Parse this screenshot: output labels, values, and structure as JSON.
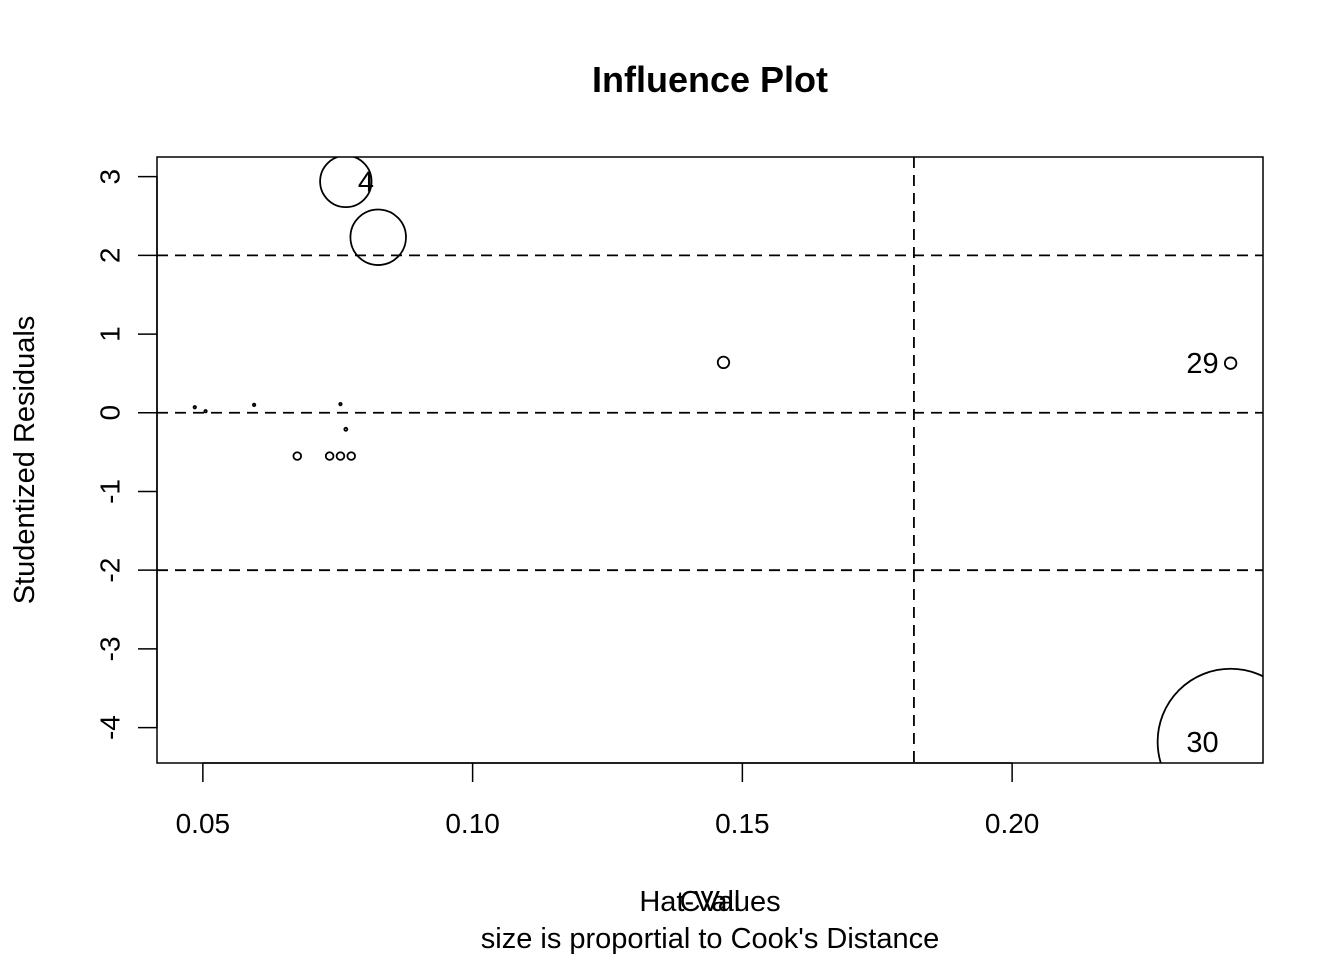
{
  "chart_data": {
    "type": "scatter",
    "title": "Influence Plot",
    "xlabel": "Hat-Values",
    "xlabel_overlay": "CVal",
    "subtitle": "size is proportial to Cook's Distance",
    "ylabel": "Studentized Residuals",
    "xlim": [
      0.0415,
      0.2465
    ],
    "ylim": [
      -4.45,
      3.25
    ],
    "x_ticks": [
      0.05,
      0.1,
      0.15,
      0.2
    ],
    "x_tick_labels": [
      "0.05",
      "0.10",
      "0.15",
      "0.20"
    ],
    "y_ticks": [
      -4,
      -3,
      -2,
      -1,
      0,
      1,
      2,
      3
    ],
    "y_tick_labels": [
      "-4",
      "-3",
      "-2",
      "-1",
      "0",
      "1",
      "2",
      "3"
    ],
    "reference_lines": {
      "horizontal": [
        -2,
        0,
        2
      ],
      "vertical": [
        0.1818
      ]
    },
    "points": [
      {
        "x": 0.0765,
        "y": 2.94,
        "cook": 0.36,
        "label": "4"
      },
      {
        "x": 0.0825,
        "y": 2.23,
        "cook": 0.42,
        "label": ""
      },
      {
        "x": 0.1465,
        "y": 0.64,
        "cook": 0.018,
        "label": ""
      },
      {
        "x": 0.2405,
        "y": 0.63,
        "cook": 0.018,
        "label": "29"
      },
      {
        "x": 0.2405,
        "y": -4.18,
        "cook": 2.9,
        "label": "30"
      },
      {
        "x": 0.0675,
        "y": -0.55,
        "cook": 0.008,
        "label": ""
      },
      {
        "x": 0.0735,
        "y": -0.55,
        "cook": 0.008,
        "label": ""
      },
      {
        "x": 0.0755,
        "y": -0.55,
        "cook": 0.008,
        "label": ""
      },
      {
        "x": 0.0775,
        "y": -0.55,
        "cook": 0.008,
        "label": ""
      },
      {
        "x": 0.0765,
        "y": -0.21,
        "cook": 0.0012,
        "label": ""
      },
      {
        "x": 0.0755,
        "y": 0.11,
        "cook": 0.0008,
        "label": ""
      },
      {
        "x": 0.0595,
        "y": 0.1,
        "cook": 0.0006,
        "label": ""
      },
      {
        "x": 0.0485,
        "y": 0.07,
        "cook": 0.0003,
        "label": ""
      },
      {
        "x": 0.0505,
        "y": 0.02,
        "cook": 0.0001,
        "label": ""
      }
    ]
  }
}
